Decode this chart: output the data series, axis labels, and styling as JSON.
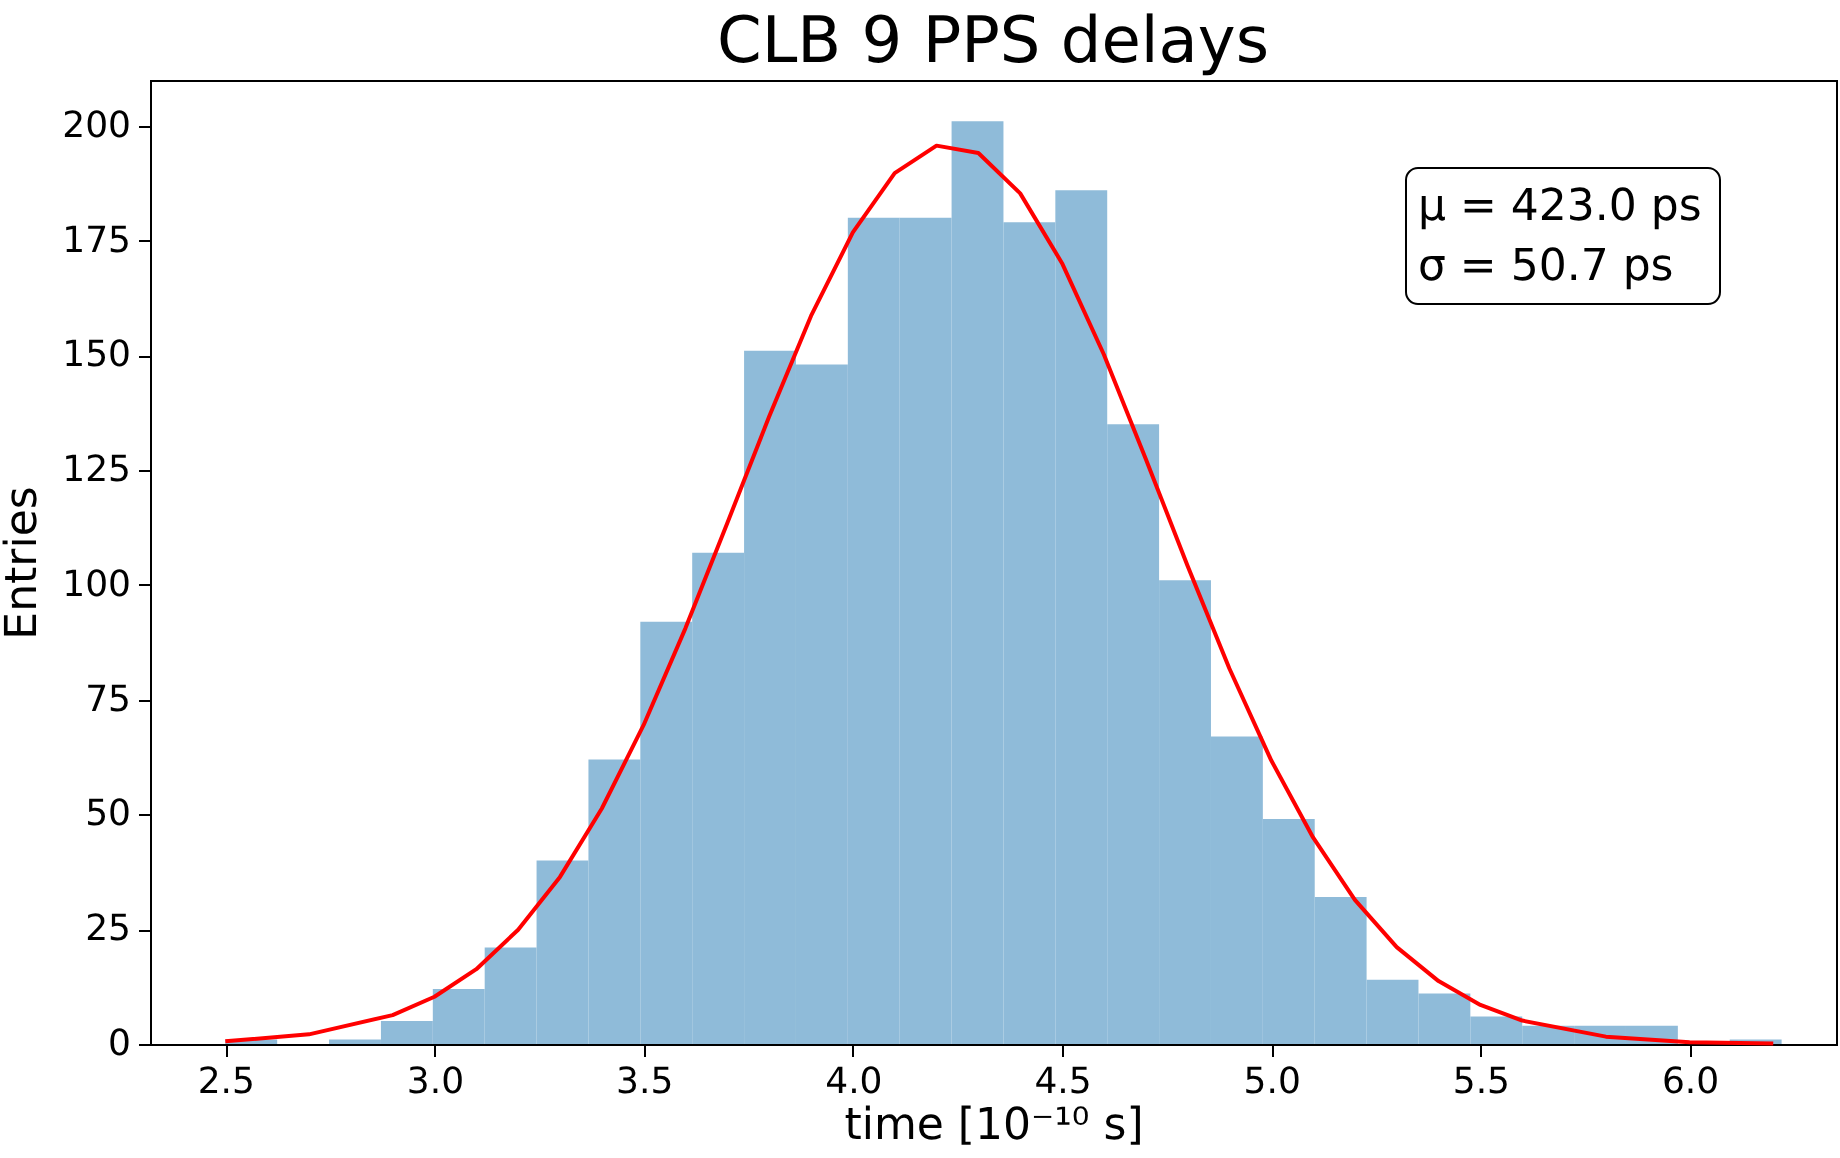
{
  "chart_data": {
    "type": "histogram",
    "title": "CLB 9 PPS delays",
    "xlabel": "time [10⁻¹⁰ s]",
    "ylabel": "Entries",
    "bins": [
      2.5,
      2.624,
      2.748,
      2.872,
      2.996,
      3.12,
      3.244,
      3.368,
      3.492,
      3.616,
      3.74,
      3.864,
      3.988,
      4.112,
      4.236,
      4.36,
      4.484,
      4.608,
      4.732,
      4.856,
      4.98,
      5.104,
      5.228,
      5.352,
      5.476,
      5.6,
      5.724,
      5.848,
      5.972,
      6.096,
      6.22
    ],
    "values": [
      1,
      0,
      1,
      5,
      12,
      21,
      40,
      62,
      92,
      107,
      151,
      148,
      180,
      180,
      201,
      179,
      186,
      135,
      101,
      67,
      49,
      32,
      14,
      11,
      6,
      4,
      4,
      4,
      0,
      1
    ],
    "color": "#8fbbd9",
    "series": [
      {
        "type": "line",
        "color": "#ff0000",
        "x": [
          2.5,
          2.7,
          2.9,
          3.0,
          3.1,
          3.2,
          3.3,
          3.4,
          3.5,
          3.6,
          3.7,
          3.8,
          3.9,
          4.0,
          4.1,
          4.2,
          4.3,
          4.4,
          4.5,
          4.6,
          4.7,
          4.8,
          4.9,
          5.0,
          5.1,
          5.2,
          5.3,
          5.4,
          5.5,
          5.6,
          5.8,
          6.0,
          6.2
        ],
        "values": [
          0.6,
          2.1,
          6.3,
          10.3,
          16.3,
          24.9,
          36.4,
          51.3,
          69.5,
          90.6,
          113.5,
          136.7,
          158.6,
          176.8,
          189.7,
          195.7,
          194.1,
          185.3,
          170.1,
          150.2,
          127.5,
          104.2,
          81.8,
          61.8,
          45.0,
          31.4,
          21.1,
          13.7,
          8.5,
          5.1,
          1.6,
          0.4,
          0.1
        ]
      }
    ],
    "annotations": [
      "μ = 423.0 ps",
      "σ =  50.7 ps"
    ],
    "xlim": [
      2.32,
      6.35
    ],
    "xticks": [
      {
        "value": 2.5,
        "label": "2.5"
      },
      {
        "value": 3.0,
        "label": "3.0"
      },
      {
        "value": 3.5,
        "label": "3.5"
      },
      {
        "value": 4.0,
        "label": "4.0"
      },
      {
        "value": 4.5,
        "label": "4.5"
      },
      {
        "value": 5.0,
        "label": "5.0"
      },
      {
        "value": 5.5,
        "label": "5.5"
      },
      {
        "value": 6.0,
        "label": "6.0"
      }
    ],
    "ylim": [
      0,
      210
    ],
    "yticks": [
      0,
      25,
      50,
      75,
      100,
      125,
      150,
      175,
      200
    ],
    "grid": false
  }
}
